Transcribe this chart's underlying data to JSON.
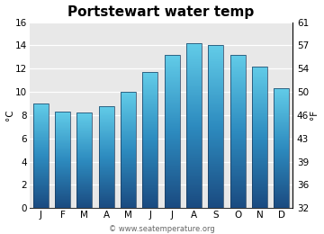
{
  "title": "Portstewart water temp",
  "months": [
    "J",
    "F",
    "M",
    "A",
    "M",
    "J",
    "J",
    "A",
    "S",
    "O",
    "N",
    "D"
  ],
  "values_c": [
    9.0,
    8.3,
    8.2,
    8.8,
    10.0,
    11.7,
    13.2,
    14.2,
    14.0,
    13.2,
    12.2,
    10.3
  ],
  "ylim_c": [
    0,
    16
  ],
  "yticks_c": [
    0,
    2,
    4,
    6,
    8,
    10,
    12,
    14,
    16
  ],
  "yticks_f": [
    32,
    36,
    39,
    43,
    46,
    50,
    54,
    57,
    61
  ],
  "ylabel_left": "°C",
  "ylabel_right": "°F",
  "bar_color_top": "#62cce8",
  "bar_color_mid": "#2d8bbf",
  "bar_color_bottom": "#1a4a80",
  "bar_edge_color": "#1a3a5c",
  "plot_bg": "#e8e8e8",
  "fig_bg": "#ffffff",
  "watermark": "© www.seatemperature.org",
  "title_fontsize": 11,
  "axis_fontsize": 7.5,
  "watermark_fontsize": 6,
  "bar_width": 0.7
}
